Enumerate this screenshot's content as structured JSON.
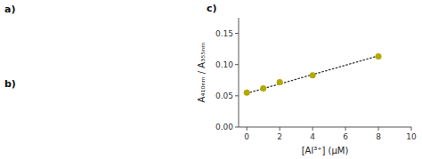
{
  "chart_data": {
    "type": "scatter",
    "x_label": "[Al³⁺] (μM)",
    "y_label": "A₄₁₀ₙₘ / A₃₅₅ₙₘ",
    "annotations": [
      "c)",
      "a)",
      "b)"
    ],
    "series": [
      {
        "type": "scatter",
        "marker": "circle",
        "color": "#b5a800",
        "x": [
          0,
          1,
          2,
          4,
          8
        ],
        "values": [
          0.055,
          0.062,
          0.072,
          0.083,
          0.113
        ]
      },
      {
        "type": "line",
        "line_style": "dotted",
        "color": "#333333",
        "x": [
          0,
          8
        ],
        "values": [
          0.054,
          0.114
        ]
      }
    ],
    "xlim": [
      -0.5,
      10
    ],
    "ylim": [
      0.0,
      0.175
    ],
    "xticks": [
      0,
      2,
      4,
      6,
      8,
      10
    ],
    "yticks": [
      {
        "value": 0,
        "label": "0.00"
      },
      0.05,
      {
        "value": 0.1,
        "label": "0.10"
      },
      {
        "value": 0.15,
        "label": "0.15"
      }
    ],
    "grid": false
  }
}
